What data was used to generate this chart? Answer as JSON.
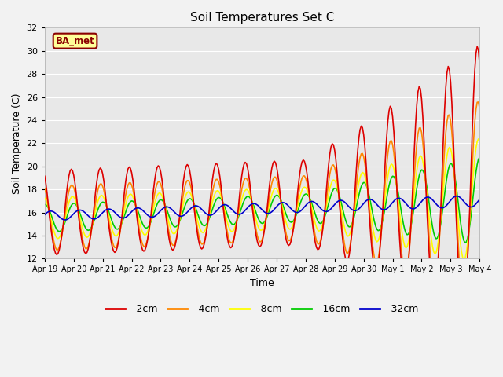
{
  "title": "Soil Temperatures Set C",
  "xlabel": "Time",
  "ylabel": "Soil Temperature (C)",
  "ylim": [
    12,
    32
  ],
  "yticks": [
    12,
    14,
    16,
    18,
    20,
    22,
    24,
    26,
    28,
    30,
    32
  ],
  "plot_bg_color": "#e8e8e8",
  "fig_bg_color": "#f2f2f2",
  "label_box_text": "BA_met",
  "label_box_bg": "#ffff99",
  "label_box_edge": "#8b0000",
  "series": {
    "-2cm": {
      "color": "#dd0000",
      "lw": 1.2
    },
    "-4cm": {
      "color": "#ff8800",
      "lw": 1.2
    },
    "-8cm": {
      "color": "#ffff00",
      "lw": 1.2
    },
    "-16cm": {
      "color": "#00cc00",
      "lw": 1.2
    },
    "-32cm": {
      "color": "#0000cc",
      "lw": 1.2
    }
  },
  "x_ticklabels": [
    "Apr 19",
    "Apr 20",
    "Apr 21",
    "Apr 22",
    "Apr 23",
    "Apr 24",
    "Apr 25",
    "Apr 26",
    "Apr 27",
    "Apr 28",
    "Apr 29",
    "Apr 30",
    "May 1",
    "May 2",
    "May 3",
    "May 4"
  ],
  "figsize": [
    6.4,
    4.8
  ],
  "dpi": 100
}
